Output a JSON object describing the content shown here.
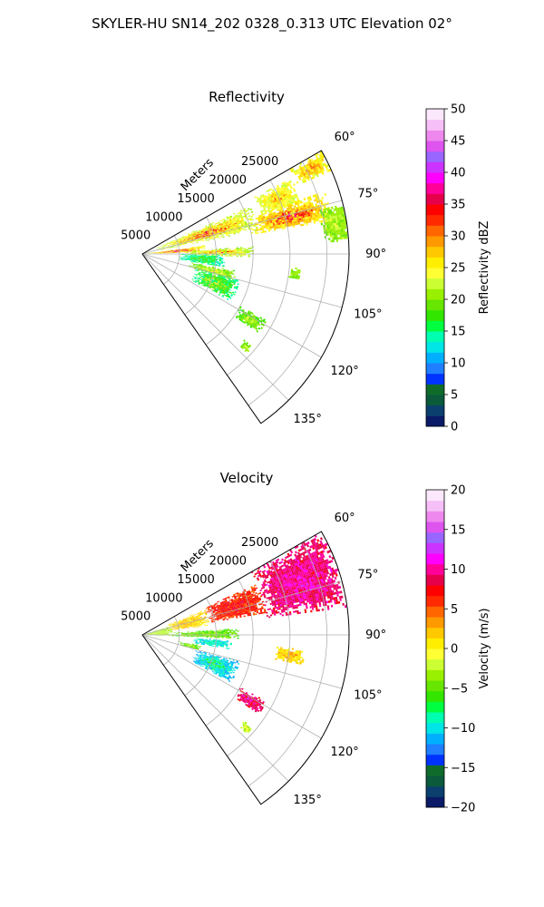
{
  "figure": {
    "suptitle": "SKYLER-HU  SN14_202  0328_0.313 UTC Elevation 02°"
  },
  "palette": {
    "refl": [
      "#0a1a66",
      "#0b3f6e",
      "#0b5a3c",
      "#0f6b2a",
      "#0033ff",
      "#1f7fff",
      "#00b0ff",
      "#00e6e6",
      "#00ffb0",
      "#00ff40",
      "#33e600",
      "#66e600",
      "#99f000",
      "#ccff33",
      "#ffff33",
      "#ffee00",
      "#ffc800",
      "#ff9900",
      "#ff6600",
      "#ff2a00",
      "#ff0000",
      "#e6004c",
      "#ff0099",
      "#ff00ff",
      "#cc33ff",
      "#9966ff",
      "#dd55ee",
      "#ee88ee",
      "#f7bff7",
      "#fce8fc"
    ],
    "vel": [
      "#0a1a66",
      "#0b3f6e",
      "#0b5a3c",
      "#0f6b2a",
      "#0033ff",
      "#1f7fff",
      "#00b0ff",
      "#00e6e6",
      "#00ffb0",
      "#00ff40",
      "#33e600",
      "#66e600",
      "#99f000",
      "#ccff33",
      "#ffff33",
      "#ffee00",
      "#ffc800",
      "#ff9900",
      "#ff6600",
      "#ff2a00",
      "#ff0000",
      "#e6004c",
      "#ff0099",
      "#ff00ff",
      "#cc33ff",
      "#9966ff",
      "#dd55ee",
      "#ee88ee",
      "#f7bff7",
      "#fce8fc"
    ]
  },
  "chart_data": [
    {
      "type": "heatmap",
      "projection": "polar-sector",
      "title": "Reflectivity",
      "radial_axis_label": "Meters",
      "radial_ticks": [
        "5000",
        "10000",
        "15000",
        "20000",
        "25000"
      ],
      "radial_tick_values": [
        5000,
        10000,
        15000,
        20000,
        25000
      ],
      "angular_ticks": [
        "60°",
        "75°",
        "90°",
        "105°",
        "120°",
        "135°"
      ],
      "angular_tick_values": [
        60,
        75,
        90,
        105,
        120,
        135
      ],
      "azimuth_range": [
        60,
        145
      ],
      "range_max": 28000,
      "grid": true,
      "colorbar": {
        "label": "Reflectivity dBZ",
        "range": [
          0,
          50
        ],
        "ticks": [
          "0",
          "5",
          "10",
          "15",
          "20",
          "25",
          "30",
          "35",
          "40",
          "45",
          "50"
        ],
        "tick_values": [
          0,
          5,
          10,
          15,
          20,
          25,
          30,
          35,
          40,
          45,
          50
        ]
      },
      "echoes": [
        {
          "az": [
            60,
            66
          ],
          "r": [
            23000,
            28000
          ],
          "value": 24,
          "peak": 32
        },
        {
          "az": [
            63,
            72
          ],
          "r": [
            17000,
            22500
          ],
          "value": 23,
          "peak": 30
        },
        {
          "az": [
            66,
            78
          ],
          "r": [
            2000,
            16000
          ],
          "value": 22,
          "peak": 36
        },
        {
          "az": [
            71,
            80
          ],
          "r": [
            15000,
            26000
          ],
          "value": 25,
          "peak": 36
        },
        {
          "az": [
            76,
            86
          ],
          "r": [
            24500,
            28000
          ],
          "value": 20,
          "peak": 24
        },
        {
          "az": [
            82,
            88
          ],
          "r": [
            500,
            8500
          ],
          "value": 24,
          "peak": 40
        },
        {
          "az": [
            86,
            91
          ],
          "r": [
            6000,
            15000
          ],
          "value": 21,
          "peak": 34
        },
        {
          "az": [
            90,
            99
          ],
          "r": [
            5000,
            11000
          ],
          "value": 14,
          "peak": 20
        },
        {
          "az": [
            95,
            99
          ],
          "r": [
            20000,
            21500
          ],
          "value": 20,
          "peak": 22
        },
        {
          "az": [
            100,
            106
          ],
          "r": [
            6500,
            13000
          ],
          "value": 19,
          "peak": 26
        },
        {
          "az": [
            105,
            118
          ],
          "r": [
            7500,
            13500
          ],
          "value": 15,
          "peak": 24
        },
        {
          "az": [
            118,
            124
          ],
          "r": [
            15000,
            19000
          ],
          "value": 18,
          "peak": 24
        },
        {
          "az": [
            130,
            133
          ],
          "r": [
            18000,
            19500
          ],
          "value": 20,
          "peak": 22
        }
      ]
    },
    {
      "type": "heatmap",
      "projection": "polar-sector",
      "title": "Velocity",
      "radial_axis_label": "Meters",
      "radial_ticks": [
        "5000",
        "10000",
        "15000",
        "20000",
        "25000"
      ],
      "radial_tick_values": [
        5000,
        10000,
        15000,
        20000,
        25000
      ],
      "angular_ticks": [
        "60°",
        "75°",
        "90°",
        "105°",
        "120°",
        "135°"
      ],
      "angular_tick_values": [
        60,
        75,
        90,
        105,
        120,
        135
      ],
      "azimuth_range": [
        60,
        145
      ],
      "range_max": 28000,
      "grid": true,
      "colorbar": {
        "label": "Velocity (m/s)",
        "range": [
          -20,
          20
        ],
        "ticks": [
          "−20",
          "−15",
          "−10",
          "−5",
          "0",
          "5",
          "10",
          "15",
          "20"
        ],
        "tick_values": [
          -20,
          -15,
          -10,
          -5,
          0,
          5,
          10,
          15,
          20
        ]
      },
      "echoes": [
        {
          "az": [
            60,
            82
          ],
          "r": [
            17000,
            28000
          ],
          "value": 9,
          "peak": 11
        },
        {
          "az": [
            66,
            80
          ],
          "r": [
            9000,
            17000
          ],
          "value": 6,
          "peak": 8
        },
        {
          "az": [
            68,
            82
          ],
          "r": [
            3500,
            9000
          ],
          "value": 1,
          "peak": 3
        },
        {
          "az": [
            72,
            92
          ],
          "r": [
            200,
            4000
          ],
          "value": -3,
          "peak": -2
        },
        {
          "az": [
            86,
            92
          ],
          "r": [
            4000,
            13000
          ],
          "value": -5,
          "peak": -4
        },
        {
          "az": [
            93,
            99
          ],
          "r": [
            7000,
            12000
          ],
          "value": -10,
          "peak": -8
        },
        {
          "az": [
            95,
            100
          ],
          "r": [
            18000,
            22000
          ],
          "value": 1,
          "peak": 4
        },
        {
          "az": [
            100,
            105
          ],
          "r": [
            5000,
            8000
          ],
          "value": -5,
          "peak": -2
        },
        {
          "az": [
            105,
            118
          ],
          "r": [
            7500,
            13500
          ],
          "value": -11,
          "peak": -6
        },
        {
          "az": [
            118,
            124
          ],
          "r": [
            15000,
            19000
          ],
          "value": 8,
          "peak": 12
        },
        {
          "az": [
            130,
            133
          ],
          "r": [
            18000,
            19500
          ],
          "value": -3,
          "peak": 0
        }
      ]
    }
  ]
}
